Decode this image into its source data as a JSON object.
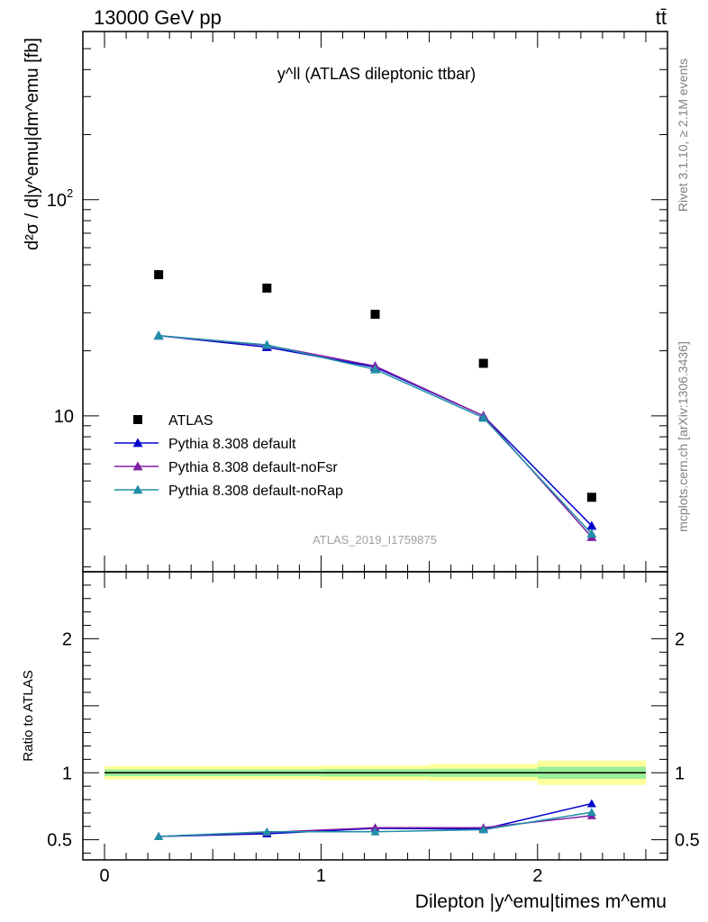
{
  "header": {
    "energy_label": "13000 GeV pp",
    "process_label": "tt̄"
  },
  "side_labels": {
    "rivet": "Rivet 3.1.10, ≥ 2.1M events",
    "mcplots": "mcplots.cern.ch [arXiv:1306.3436]"
  },
  "chart_data": [
    {
      "type": "scatter",
      "panel": "main",
      "title": "y^ll (ATLAS dileptonic ttbar)",
      "watermark": "ATLAS_2019_I1759875",
      "ylabel": "d²σ / d|y^emu|dm^emu [fb]",
      "yscale": "log",
      "ylim": [
        1.9,
        600
      ],
      "xlim": [
        -0.1,
        2.6
      ],
      "y_ticks": [
        {
          "value": 10,
          "label": "10"
        },
        {
          "value": 100,
          "label": "10²"
        }
      ],
      "legend_placement": "lower-left",
      "series": [
        {
          "name": "ATLAS",
          "marker": "square",
          "color": "#000000",
          "x": [
            0.25,
            0.75,
            1.25,
            1.75,
            2.25
          ],
          "y": [
            45,
            39,
            29.5,
            17.5,
            4.2
          ]
        },
        {
          "name": "Pythia 8.308 default",
          "marker": "triangle",
          "color": "#0000cc",
          "x": [
            0.25,
            0.75,
            1.25,
            1.75,
            2.25
          ],
          "y": [
            23.5,
            20.8,
            16.8,
            10.0,
            3.1
          ]
        },
        {
          "name": "Pythia 8.308 default-noFsr",
          "marker": "triangle",
          "color": "#7f1fa6",
          "x": [
            0.25,
            0.75,
            1.25,
            1.75,
            2.25
          ],
          "y": [
            23.5,
            21.2,
            17.0,
            10.0,
            2.75
          ]
        },
        {
          "name": "Pythia 8.308 default-noRap",
          "marker": "triangle",
          "color": "#1f8fa6",
          "x": [
            0.25,
            0.75,
            1.25,
            1.75,
            2.25
          ],
          "y": [
            23.5,
            21.3,
            16.4,
            9.8,
            2.85
          ]
        }
      ]
    },
    {
      "type": "line",
      "panel": "ratio",
      "ylabel": "Ratio to ATLAS",
      "xlabel": "Dilepton |y^emu|times m^emu",
      "ylim": [
        0.35,
        2.5
      ],
      "xlim": [
        -0.1,
        2.6
      ],
      "x_ticks": [
        {
          "value": 0,
          "label": "0"
        },
        {
          "value": 1,
          "label": "1"
        },
        {
          "value": 2,
          "label": "2"
        }
      ],
      "y_ticks": [
        {
          "value": 0.5,
          "label": "0.5"
        },
        {
          "value": 1,
          "label": "1"
        },
        {
          "value": 2,
          "label": "2"
        }
      ],
      "bins": [
        [
          0,
          0.5
        ],
        [
          0.5,
          1.0
        ],
        [
          1.0,
          1.5
        ],
        [
          1.5,
          2.0
        ],
        [
          2.0,
          2.5
        ]
      ],
      "band_outer": [
        [
          0.95,
          1.05
        ],
        [
          0.95,
          1.05
        ],
        [
          0.945,
          1.055
        ],
        [
          0.94,
          1.065
        ],
        [
          0.91,
          1.09
        ]
      ],
      "band_inner": [
        [
          0.975,
          1.025
        ],
        [
          0.975,
          1.025
        ],
        [
          0.972,
          1.028
        ],
        [
          0.97,
          1.03
        ],
        [
          0.955,
          1.045
        ]
      ],
      "series": [
        {
          "name": "Pythia 8.308 default",
          "color": "#0000cc",
          "x": [
            0.25,
            0.75,
            1.25,
            1.75,
            2.25
          ],
          "y": [
            0.525,
            0.545,
            0.585,
            0.58,
            0.77
          ]
        },
        {
          "name": "Pythia 8.308 default-noFsr",
          "color": "#7f1fa6",
          "x": [
            0.25,
            0.75,
            1.25,
            1.75,
            2.25
          ],
          "y": [
            0.525,
            0.555,
            0.59,
            0.59,
            0.68
          ]
        },
        {
          "name": "Pythia 8.308 default-noRap",
          "color": "#1f8fa6",
          "x": [
            0.25,
            0.75,
            1.25,
            1.75,
            2.25
          ],
          "y": [
            0.525,
            0.56,
            0.56,
            0.575,
            0.705
          ]
        }
      ]
    }
  ]
}
